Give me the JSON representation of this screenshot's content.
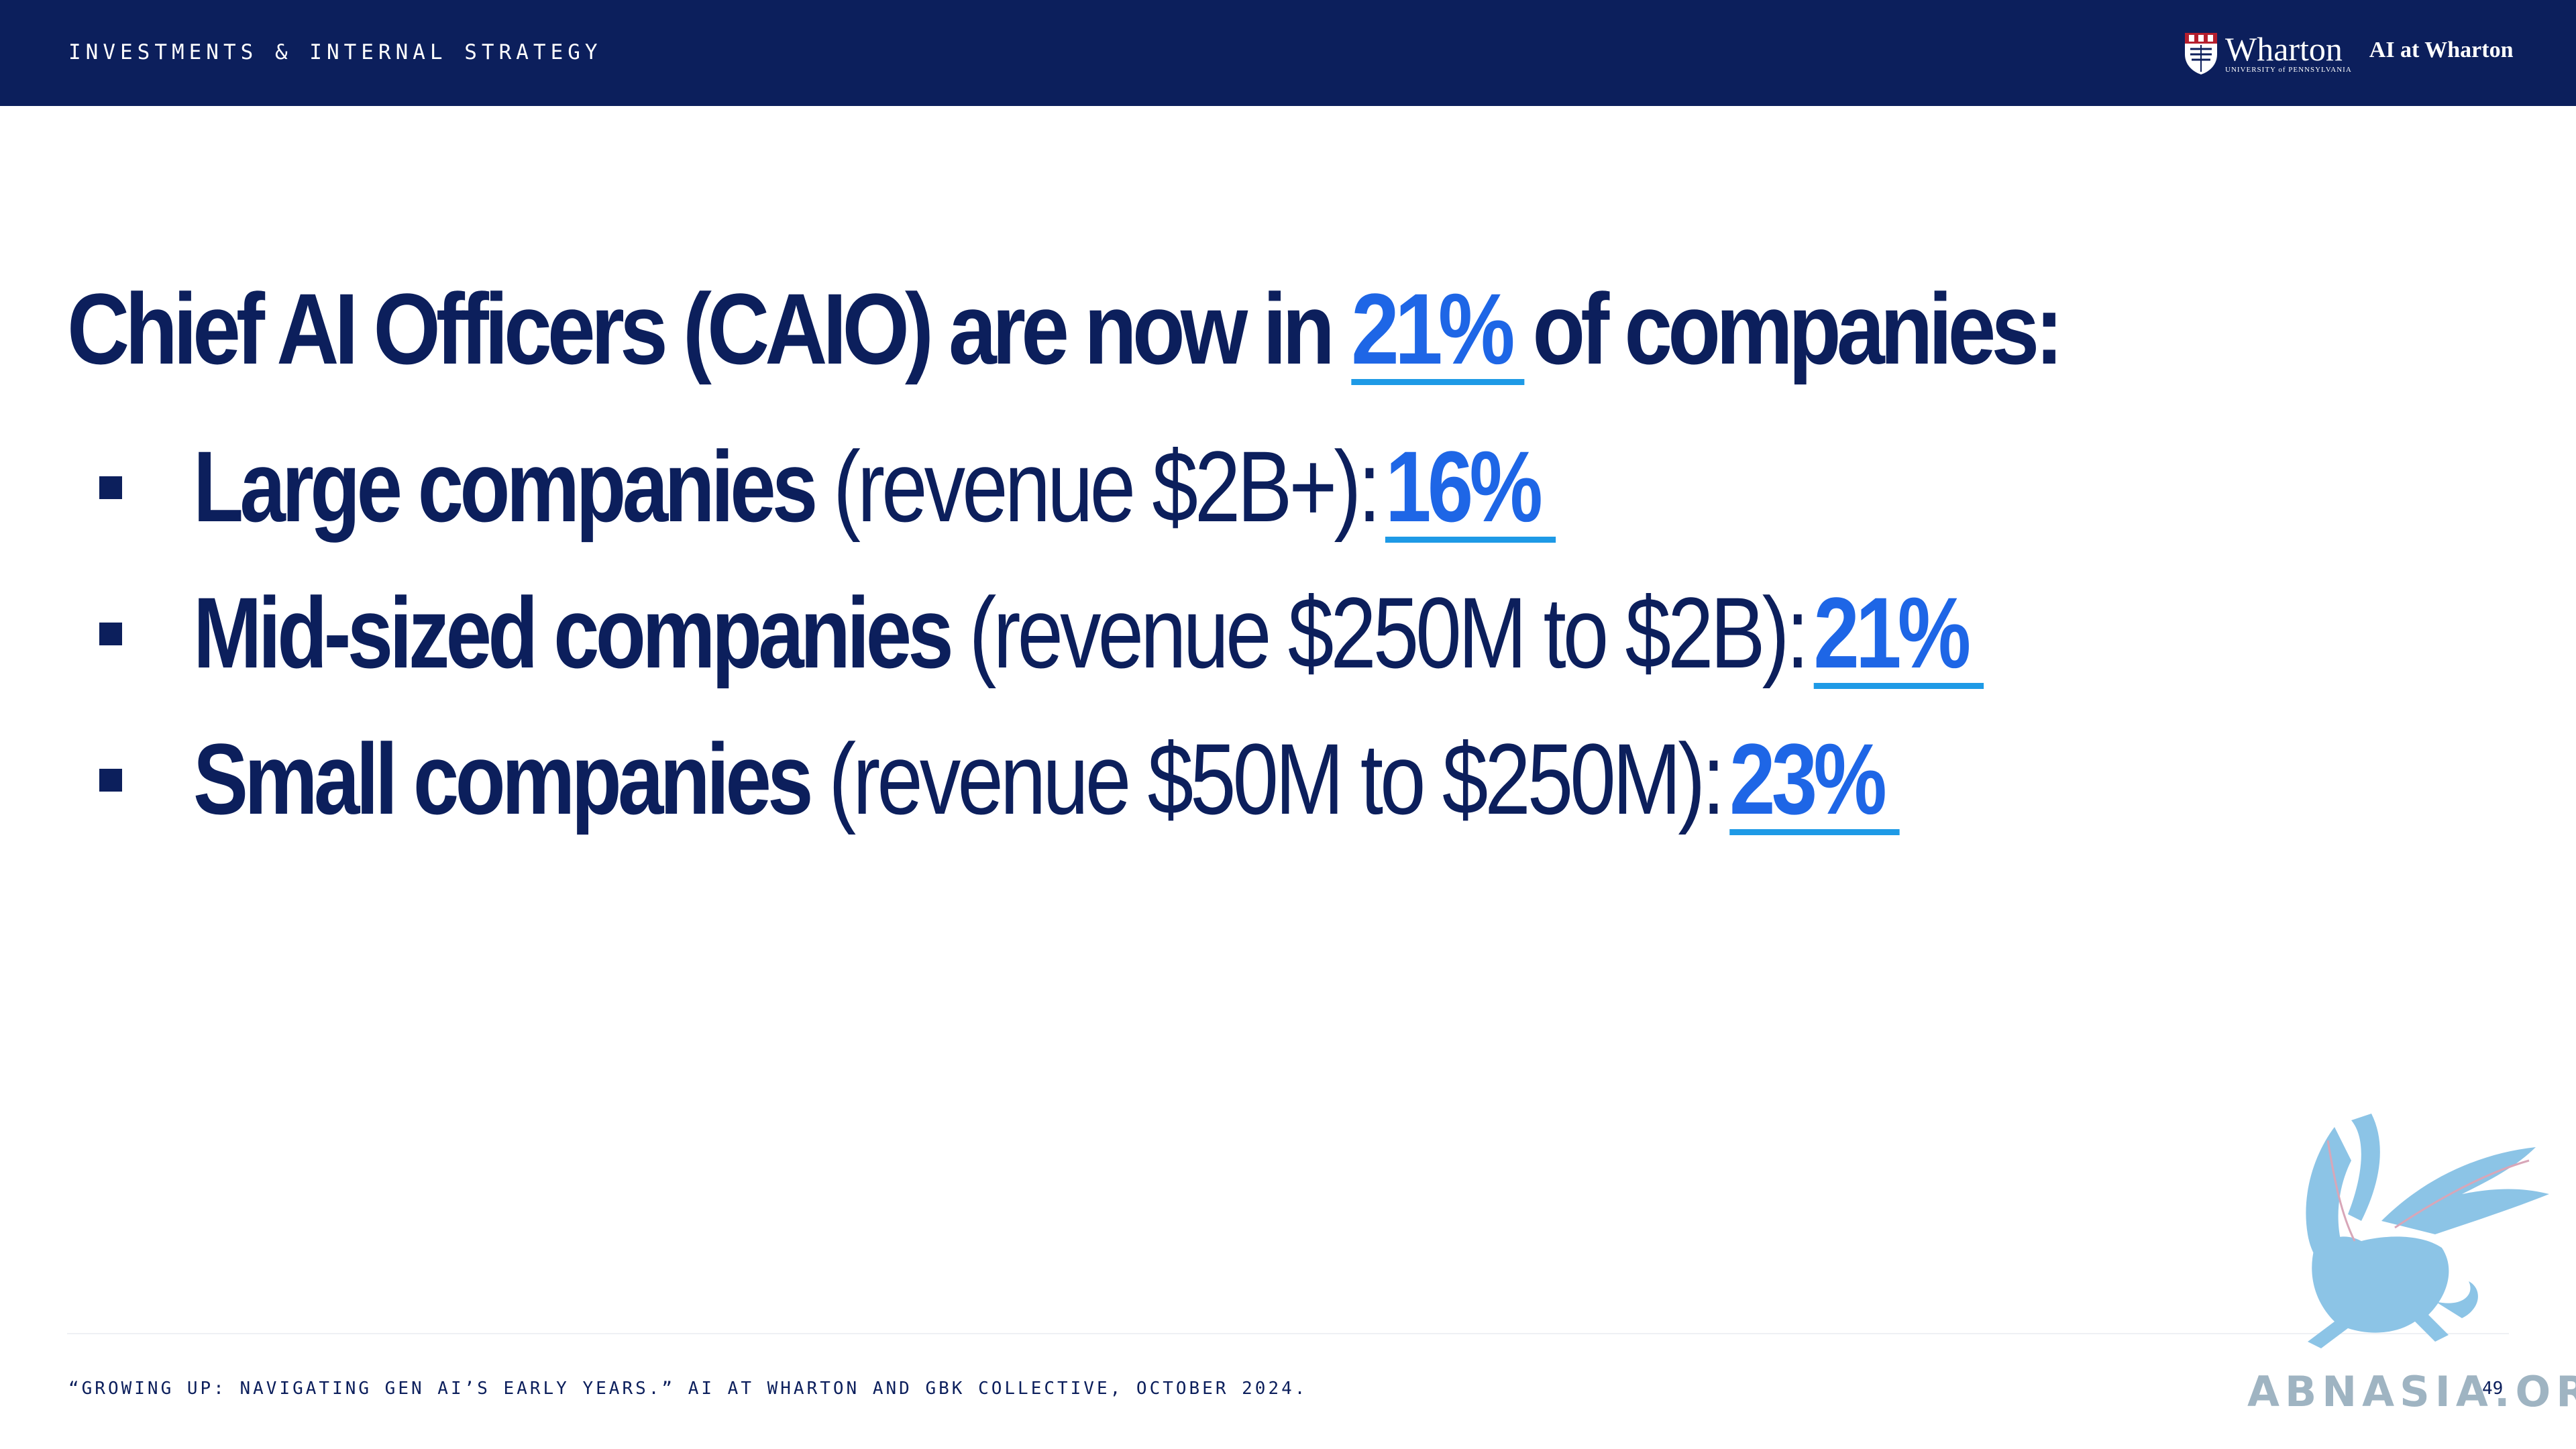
{
  "header": {
    "section_label": "INVESTMENTS & INTERNAL STRATEGY",
    "logo": {
      "name": "Wharton",
      "sub": "UNIVERSITY of PENNSYLVANIA",
      "program": "AI at Wharton"
    }
  },
  "headline": {
    "before": "Chief AI Officers (CAIO) are now in",
    "stat": "21%",
    "after": "of companies:"
  },
  "bullets": [
    {
      "label": "Large companies",
      "revenue": "(revenue $2B+):",
      "stat": "16%"
    },
    {
      "label": "Mid-sized companies",
      "revenue": "(revenue $250M to $2B):",
      "stat": "21%"
    },
    {
      "label": "Small companies",
      "revenue": "(revenue $50M to $250M):",
      "stat": "23%"
    }
  ],
  "footer": {
    "source": "“GROWING UP: NAVIGATING GEN AI’S EARLY YEARS.” AI AT WHARTON AND GBK COLLECTIVE, OCTOBER 2024.",
    "page_number": "49"
  },
  "watermark": {
    "text": "ABNASIA.ORG",
    "icon": "griffin-icon"
  },
  "colors": {
    "navy": "#0c1f5c",
    "accent_blue": "#1e66e6",
    "underline_blue": "#1e9ae6"
  }
}
